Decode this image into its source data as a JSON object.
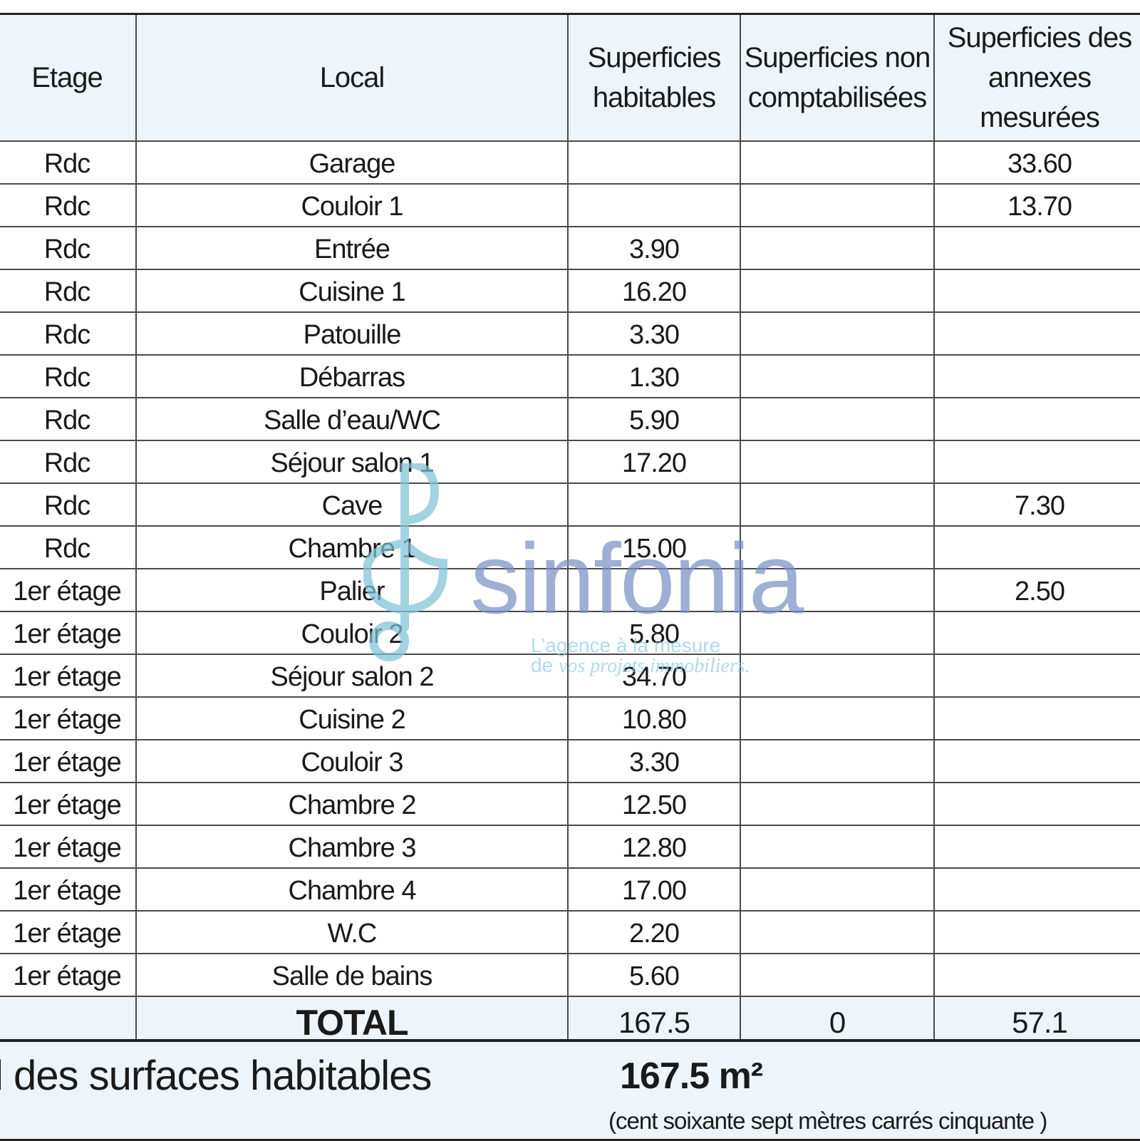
{
  "table": {
    "headers": {
      "etage": "Etage",
      "local": "Local",
      "hab": "Superficies habitables",
      "non": "Superficies non comptabilisées",
      "ann": "Superficies des annexes mesurées"
    },
    "rows": [
      {
        "etage": "Rdc",
        "local": "Garage",
        "hab": "",
        "non": "",
        "ann": "33.60"
      },
      {
        "etage": "Rdc",
        "local": "Couloir 1",
        "hab": "",
        "non": "",
        "ann": "13.70"
      },
      {
        "etage": "Rdc",
        "local": "Entrée",
        "hab": "3.90",
        "non": "",
        "ann": ""
      },
      {
        "etage": "Rdc",
        "local": "Cuisine 1",
        "hab": "16.20",
        "non": "",
        "ann": ""
      },
      {
        "etage": "Rdc",
        "local": "Patouille",
        "hab": "3.30",
        "non": "",
        "ann": ""
      },
      {
        "etage": "Rdc",
        "local": "Débarras",
        "hab": "1.30",
        "non": "",
        "ann": ""
      },
      {
        "etage": "Rdc",
        "local": "Salle d’eau/WC",
        "hab": "5.90",
        "non": "",
        "ann": ""
      },
      {
        "etage": "Rdc",
        "local": "Séjour salon 1",
        "hab": "17.20",
        "non": "",
        "ann": ""
      },
      {
        "etage": "Rdc",
        "local": "Cave",
        "hab": "",
        "non": "",
        "ann": "7.30"
      },
      {
        "etage": "Rdc",
        "local": "Chambre 1",
        "hab": "15.00",
        "non": "",
        "ann": ""
      },
      {
        "etage": "1er étage",
        "local": "Palier",
        "hab": "",
        "non": "",
        "ann": "2.50"
      },
      {
        "etage": "1er étage",
        "local": "Couloir 2",
        "hab": "5.80",
        "non": "",
        "ann": ""
      },
      {
        "etage": "1er étage",
        "local": "Séjour salon 2",
        "hab": "34.70",
        "non": "",
        "ann": ""
      },
      {
        "etage": "1er étage",
        "local": "Cuisine 2",
        "hab": "10.80",
        "non": "",
        "ann": ""
      },
      {
        "etage": "1er étage",
        "local": "Couloir 3",
        "hab": "3.30",
        "non": "",
        "ann": ""
      },
      {
        "etage": "1er étage",
        "local": "Chambre 2",
        "hab": "12.50",
        "non": "",
        "ann": ""
      },
      {
        "etage": "1er étage",
        "local": "Chambre 3",
        "hab": "12.80",
        "non": "",
        "ann": ""
      },
      {
        "etage": "1er étage",
        "local": "Chambre 4",
        "hab": "17.00",
        "non": "",
        "ann": ""
      },
      {
        "etage": "1er étage",
        "local": "W.C",
        "hab": "2.20",
        "non": "",
        "ann": ""
      },
      {
        "etage": "1er étage",
        "local": "Salle de bains",
        "hab": "5.60",
        "non": "",
        "ann": ""
      }
    ],
    "total": {
      "label": "TOTAL",
      "hab": "167.5",
      "non": "0",
      "ann": "57.1"
    }
  },
  "summary": {
    "label": "l des surfaces habitables",
    "value": "167.5 m²",
    "words": "(cent soixante sept mètres carrés cinquante  )"
  },
  "watermark": {
    "brand": "sinfonia",
    "tagline1": "L’agence à la mesure",
    "tagline2_prefix": "de ",
    "tagline2_italic": "vos projets immobiliers.",
    "colors": {
      "brand": "#7b8fc6",
      "logo": "#7fc3d6",
      "tagline": "#8fcfe0"
    }
  },
  "colors": {
    "header_bg": "#eef5fa",
    "border": "#4a4a4a"
  }
}
